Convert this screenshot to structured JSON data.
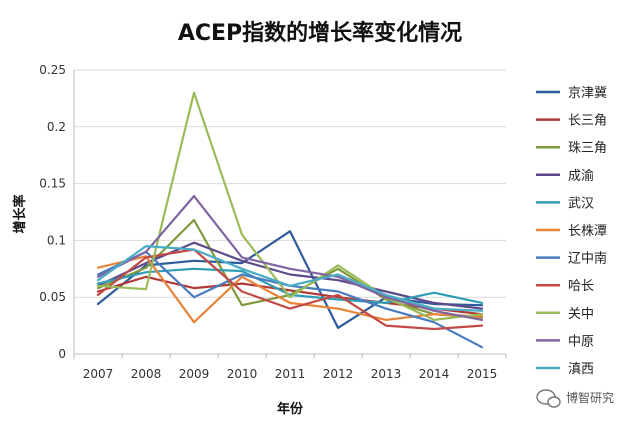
{
  "chart_data": {
    "type": "line",
    "title": "ACEP指数的增长率变化情况",
    "xlabel": "年份",
    "ylabel": "增长率",
    "categories": [
      "2007",
      "2008",
      "2009",
      "2010",
      "2011",
      "2012",
      "2013",
      "2014",
      "2015"
    ],
    "ylim": [
      0,
      0.25
    ],
    "yticks": [
      0,
      0.05,
      0.1,
      0.15,
      0.2,
      0.25
    ],
    "ytick_labels": [
      "0",
      "0.05",
      "0.1",
      "0.15",
      "0.2",
      "0.25"
    ],
    "grid": true,
    "legend_position": "right",
    "series": [
      {
        "name": "京津冀",
        "color": "#2E5C9A",
        "values": [
          0.044,
          0.078,
          0.082,
          0.08,
          0.108,
          0.023,
          0.05,
          0.044,
          0.043
        ]
      },
      {
        "name": "长三角",
        "color": "#B03A36",
        "values": [
          0.055,
          0.068,
          0.058,
          0.062,
          0.056,
          0.05,
          0.045,
          0.04,
          0.035
        ]
      },
      {
        "name": "珠三角",
        "color": "#7F9A3A",
        "values": [
          0.058,
          0.076,
          0.118,
          0.043,
          0.052,
          0.075,
          0.048,
          0.035,
          0.032
        ]
      },
      {
        "name": "成渝",
        "color": "#5E4A8A",
        "values": [
          0.06,
          0.08,
          0.098,
          0.082,
          0.07,
          0.065,
          0.055,
          0.045,
          0.04
        ]
      },
      {
        "name": "武汉",
        "color": "#2E9DB5",
        "values": [
          0.062,
          0.072,
          0.075,
          0.073,
          0.052,
          0.048,
          0.045,
          0.054,
          0.045
        ]
      },
      {
        "name": "长株潭",
        "color": "#E8843A",
        "values": [
          0.076,
          0.086,
          0.028,
          0.068,
          0.045,
          0.04,
          0.03,
          0.035,
          0.033
        ]
      },
      {
        "name": "辽中南",
        "color": "#4A7CC0",
        "values": [
          0.07,
          0.09,
          0.05,
          0.07,
          0.06,
          0.055,
          0.04,
          0.028,
          0.006
        ]
      },
      {
        "name": "哈长",
        "color": "#C24A46",
        "values": [
          0.052,
          0.085,
          0.092,
          0.055,
          0.04,
          0.052,
          0.025,
          0.022,
          0.025
        ]
      },
      {
        "name": "关中",
        "color": "#9BBB59",
        "values": [
          0.06,
          0.057,
          0.23,
          0.105,
          0.05,
          0.078,
          0.05,
          0.03,
          0.035
        ]
      },
      {
        "name": "中原",
        "color": "#8064A2",
        "values": [
          0.068,
          0.09,
          0.139,
          0.085,
          0.075,
          0.068,
          0.05,
          0.038,
          0.03
        ]
      },
      {
        "name": "滇西",
        "color": "#4BACC6",
        "values": [
          0.065,
          0.095,
          0.092,
          0.075,
          0.06,
          0.07,
          0.052,
          0.04,
          0.038
        ]
      }
    ]
  },
  "watermark": {
    "text": "博智研究"
  }
}
